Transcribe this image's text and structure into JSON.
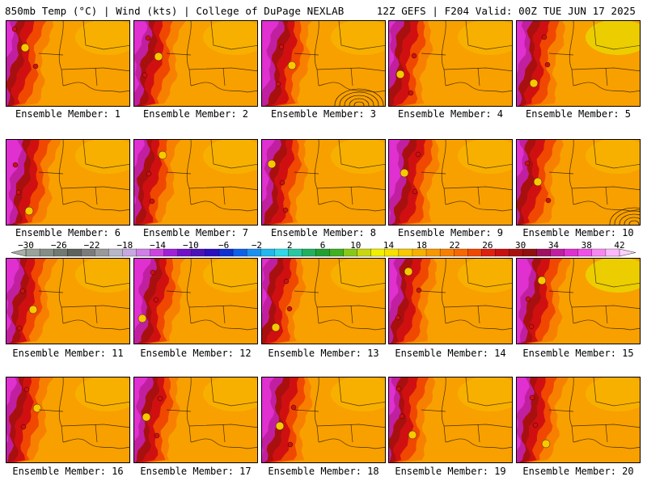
{
  "header": {
    "left_title": "850mb Temp (°C) | Wind (kts) | College of DuPage NEXLAB",
    "right_title": "12Z GEFS | F204 Valid: 00Z TUE JUN 17 2025"
  },
  "members": [
    {
      "label": "Ensemble Member: 1"
    },
    {
      "label": "Ensemble Member: 2"
    },
    {
      "label": "Ensemble Member: 3"
    },
    {
      "label": "Ensemble Member: 4"
    },
    {
      "label": "Ensemble Member: 5"
    },
    {
      "label": "Ensemble Member: 6"
    },
    {
      "label": "Ensemble Member: 7"
    },
    {
      "label": "Ensemble Member: 8"
    },
    {
      "label": "Ensemble Member: 9"
    },
    {
      "label": "Ensemble Member: 10"
    },
    {
      "label": "Ensemble Member: 11"
    },
    {
      "label": "Ensemble Member: 12"
    },
    {
      "label": "Ensemble Member: 13"
    },
    {
      "label": "Ensemble Member: 14"
    },
    {
      "label": "Ensemble Member: 15"
    },
    {
      "label": "Ensemble Member: 16"
    },
    {
      "label": "Ensemble Member: 17"
    },
    {
      "label": "Ensemble Member: 18"
    },
    {
      "label": "Ensemble Member: 19"
    },
    {
      "label": "Ensemble Member: 20"
    }
  ],
  "colorbar": {
    "tick_labels": [
      "−30",
      "−26",
      "−22",
      "−18",
      "−14",
      "−10",
      "−6",
      "−2",
      "2",
      "6",
      "10",
      "14",
      "18",
      "22",
      "26",
      "30",
      "34",
      "38",
      "42"
    ],
    "colors": [
      "#9aa39a",
      "#868d86",
      "#727872",
      "#5e635e",
      "#7b7b7b",
      "#999999",
      "#b7b7c7",
      "#c7a8e0",
      "#d07ee8",
      "#cc44e0",
      "#a020d8",
      "#7010c8",
      "#4a12b8",
      "#2a10c0",
      "#1030d0",
      "#1060e8",
      "#1c90ee",
      "#20b8ee",
      "#30d8e8",
      "#28c8a0",
      "#20b060",
      "#20a030",
      "#40b020",
      "#88c818",
      "#c8d810",
      "#f0f000",
      "#f8e000",
      "#f8c800",
      "#f8b000",
      "#f89800",
      "#f88000",
      "#f86800",
      "#f04800",
      "#e02010",
      "#c81010",
      "#a81010",
      "#901010",
      "#a01060",
      "#c020a0",
      "#e030d0",
      "#f050e8",
      "#f888f0",
      "#fcb8f8"
    ]
  }
}
